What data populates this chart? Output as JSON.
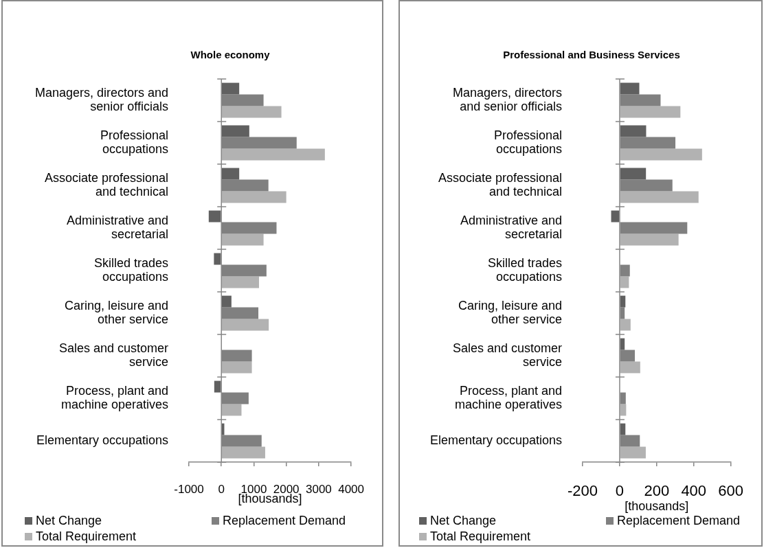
{
  "chart_data": [
    {
      "type": "bar",
      "orientation": "horizontal",
      "title": "Whole economy",
      "xlabel": "[thousands]",
      "categories": [
        "Managers, directors and senior officials",
        "Professional occupations",
        "Associate professional and technical",
        "Administrative and secretarial",
        "Skilled trades occupations",
        "Caring, leisure and other service",
        "Sales and customer service",
        "Process, plant and machine operatives",
        "Elementary occupations"
      ],
      "series": [
        {
          "name": "Net Change",
          "color": "#606060",
          "values": [
            550,
            860,
            550,
            -390,
            -230,
            310,
            0,
            -220,
            90
          ]
        },
        {
          "name": "Replacement Demand",
          "color": "#808080",
          "values": [
            1300,
            2320,
            1450,
            1700,
            1390,
            1140,
            940,
            840,
            1240
          ]
        },
        {
          "name": "Total Requirement",
          "color": "#b2b2b2",
          "values": [
            1850,
            3190,
            2000,
            1300,
            1160,
            1460,
            940,
            620,
            1350
          ]
        }
      ],
      "xlim": [
        -1000,
        4000
      ],
      "xticks": [
        -1000,
        0,
        1000,
        2000,
        3000,
        4000
      ],
      "legend": "bottom"
    },
    {
      "type": "bar",
      "orientation": "horizontal",
      "title": "Professional and Business Services",
      "xlabel": "[thousands]",
      "categories": [
        "Managers, directors and senior officials",
        "Professional occupations",
        "Associate professional and technical",
        "Administrative and secretarial",
        "Skilled trades occupations",
        "Caring, leisure and other service",
        "Sales and customer service",
        "Process, plant and machine operatives",
        "Elementary occupations"
      ],
      "series": [
        {
          "name": "Net Change",
          "color": "#606060",
          "values": [
            106,
            143,
            142,
            -46,
            0,
            31,
            27,
            0,
            31
          ]
        },
        {
          "name": "Replacement Demand",
          "color": "#808080",
          "values": [
            221,
            301,
            285,
            365,
            55,
            27,
            82,
            33,
            109
          ]
        },
        {
          "name": "Total Requirement",
          "color": "#b2b2b2",
          "values": [
            328,
            445,
            426,
            318,
            50,
            59,
            111,
            35,
            141
          ]
        }
      ],
      "xlim": [
        -200,
        600
      ],
      "xticks": [
        -200,
        0,
        200,
        400,
        600
      ],
      "legend": "bottom"
    }
  ]
}
